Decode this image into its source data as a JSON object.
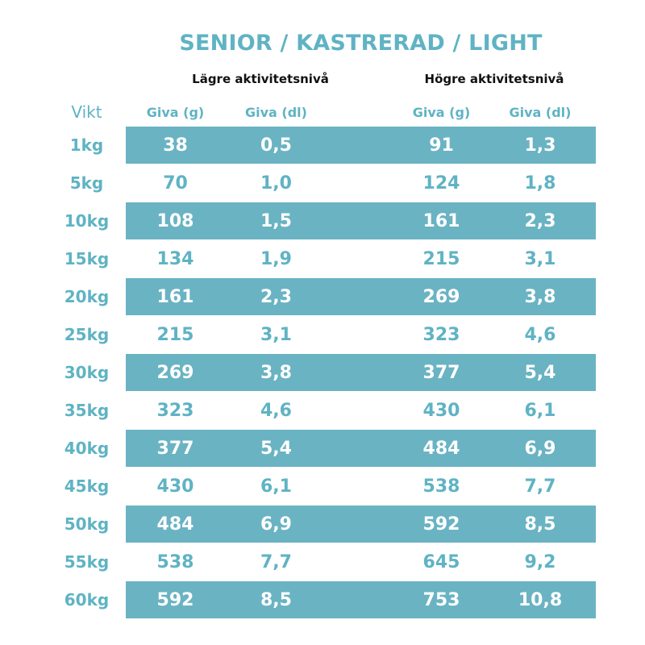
{
  "title": "SENIOR / KASTRERAD / LIGHT",
  "groups": {
    "low": "Lägre aktivitetsnivå",
    "high": "Högre aktivitetsnivå"
  },
  "headers": {
    "weight": "Vikt",
    "grams_low": "Giva (g)",
    "dl_low": "Giva (dl)",
    "grams_high": "Giva (g)",
    "dl_high": "Giva (dl)"
  },
  "colors": {
    "accent": "#5fb3c4",
    "band": "#6ab3c3",
    "band_text": "#ffffff"
  },
  "rows": [
    {
      "weight": "1kg",
      "low_g": "38",
      "low_dl": "0,5",
      "high_g": "91",
      "high_dl": "1,3",
      "shaded": true
    },
    {
      "weight": "5kg",
      "low_g": "70",
      "low_dl": "1,0",
      "high_g": "124",
      "high_dl": "1,8",
      "shaded": false
    },
    {
      "weight": "10kg",
      "low_g": "108",
      "low_dl": "1,5",
      "high_g": "161",
      "high_dl": "2,3",
      "shaded": true
    },
    {
      "weight": "15kg",
      "low_g": "134",
      "low_dl": "1,9",
      "high_g": "215",
      "high_dl": "3,1",
      "shaded": false
    },
    {
      "weight": "20kg",
      "low_g": "161",
      "low_dl": "2,3",
      "high_g": "269",
      "high_dl": "3,8",
      "shaded": true
    },
    {
      "weight": "25kg",
      "low_g": "215",
      "low_dl": "3,1",
      "high_g": "323",
      "high_dl": "4,6",
      "shaded": false
    },
    {
      "weight": "30kg",
      "low_g": "269",
      "low_dl": "3,8",
      "high_g": "377",
      "high_dl": "5,4",
      "shaded": true
    },
    {
      "weight": "35kg",
      "low_g": "323",
      "low_dl": "4,6",
      "high_g": "430",
      "high_dl": "6,1",
      "shaded": false
    },
    {
      "weight": "40kg",
      "low_g": "377",
      "low_dl": "5,4",
      "high_g": "484",
      "high_dl": "6,9",
      "shaded": true
    },
    {
      "weight": "45kg",
      "low_g": "430",
      "low_dl": "6,1",
      "high_g": "538",
      "high_dl": "7,7",
      "shaded": false
    },
    {
      "weight": "50kg",
      "low_g": "484",
      "low_dl": "6,9",
      "high_g": "592",
      "high_dl": "8,5",
      "shaded": true
    },
    {
      "weight": "55kg",
      "low_g": "538",
      "low_dl": "7,7",
      "high_g": "645",
      "high_dl": "9,2",
      "shaded": false
    },
    {
      "weight": "60kg",
      "low_g": "592",
      "low_dl": "8,5",
      "high_g": "753",
      "high_dl": "10,8",
      "shaded": true
    }
  ]
}
